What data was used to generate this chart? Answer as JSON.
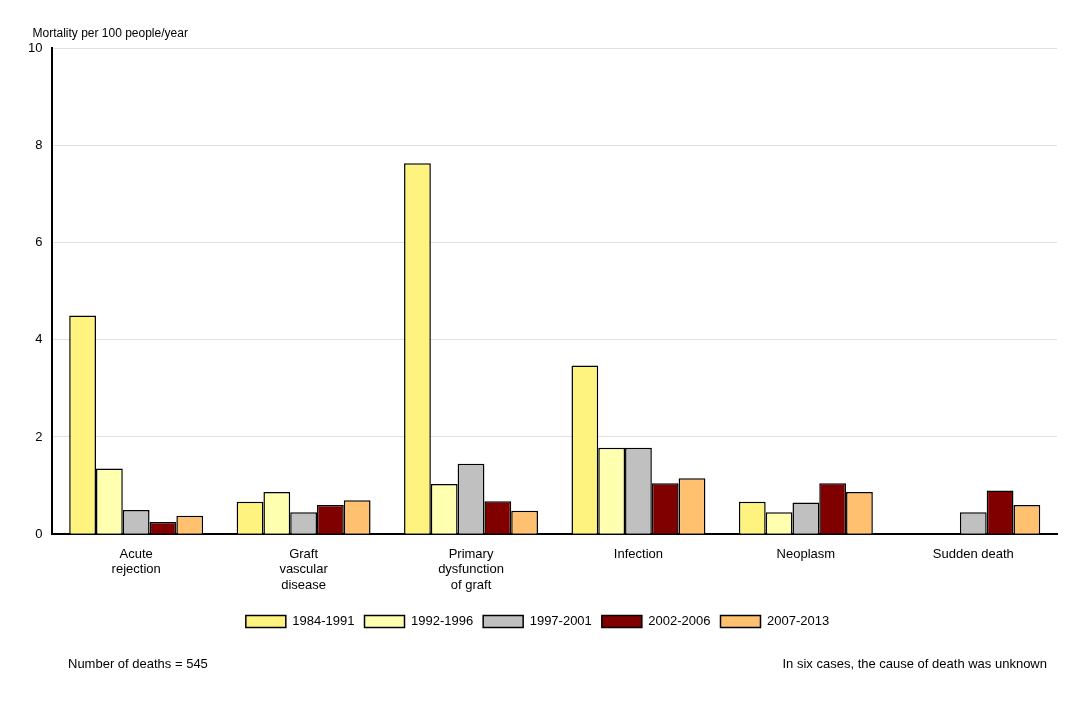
{
  "chart_data": {
    "type": "bar",
    "ylabel": "Mortality per 100 people/year",
    "categories": [
      "Acute rejection",
      "Graft vascular disease",
      "Primary dysfunction of graft",
      "Infection",
      "Neoplasm",
      "Sudden death"
    ],
    "series": [
      {
        "name": "1984-1991",
        "color": "#fff380",
        "values": [
          4.5,
          0.67,
          7.63,
          3.47,
          0.67,
          0
        ]
      },
      {
        "name": "1992-1996",
        "color": "#ffffb0",
        "values": [
          1.35,
          0.87,
          1.03,
          1.78,
          0.45,
          0
        ]
      },
      {
        "name": "1997-2001",
        "color": "#c0c0c0",
        "values": [
          0.5,
          0.45,
          1.45,
          1.78,
          0.65,
          0.45
        ]
      },
      {
        "name": "2002-2006",
        "color": "#800000",
        "values": [
          0.25,
          0.6,
          0.68,
          1.05,
          1.05,
          0.9
        ]
      },
      {
        "name": "2007-2013",
        "color": "#ffc070",
        "values": [
          0.38,
          0.7,
          0.48,
          1.15,
          0.87,
          0.6
        ]
      }
    ],
    "ylim": [
      0,
      10
    ],
    "yticks": [
      0,
      2,
      4,
      6,
      8,
      10
    ],
    "grid": "y",
    "legend": "bottom",
    "annotations": [
      "Number of deaths = 545",
      "In six cases, the cause of death was unknown"
    ]
  }
}
